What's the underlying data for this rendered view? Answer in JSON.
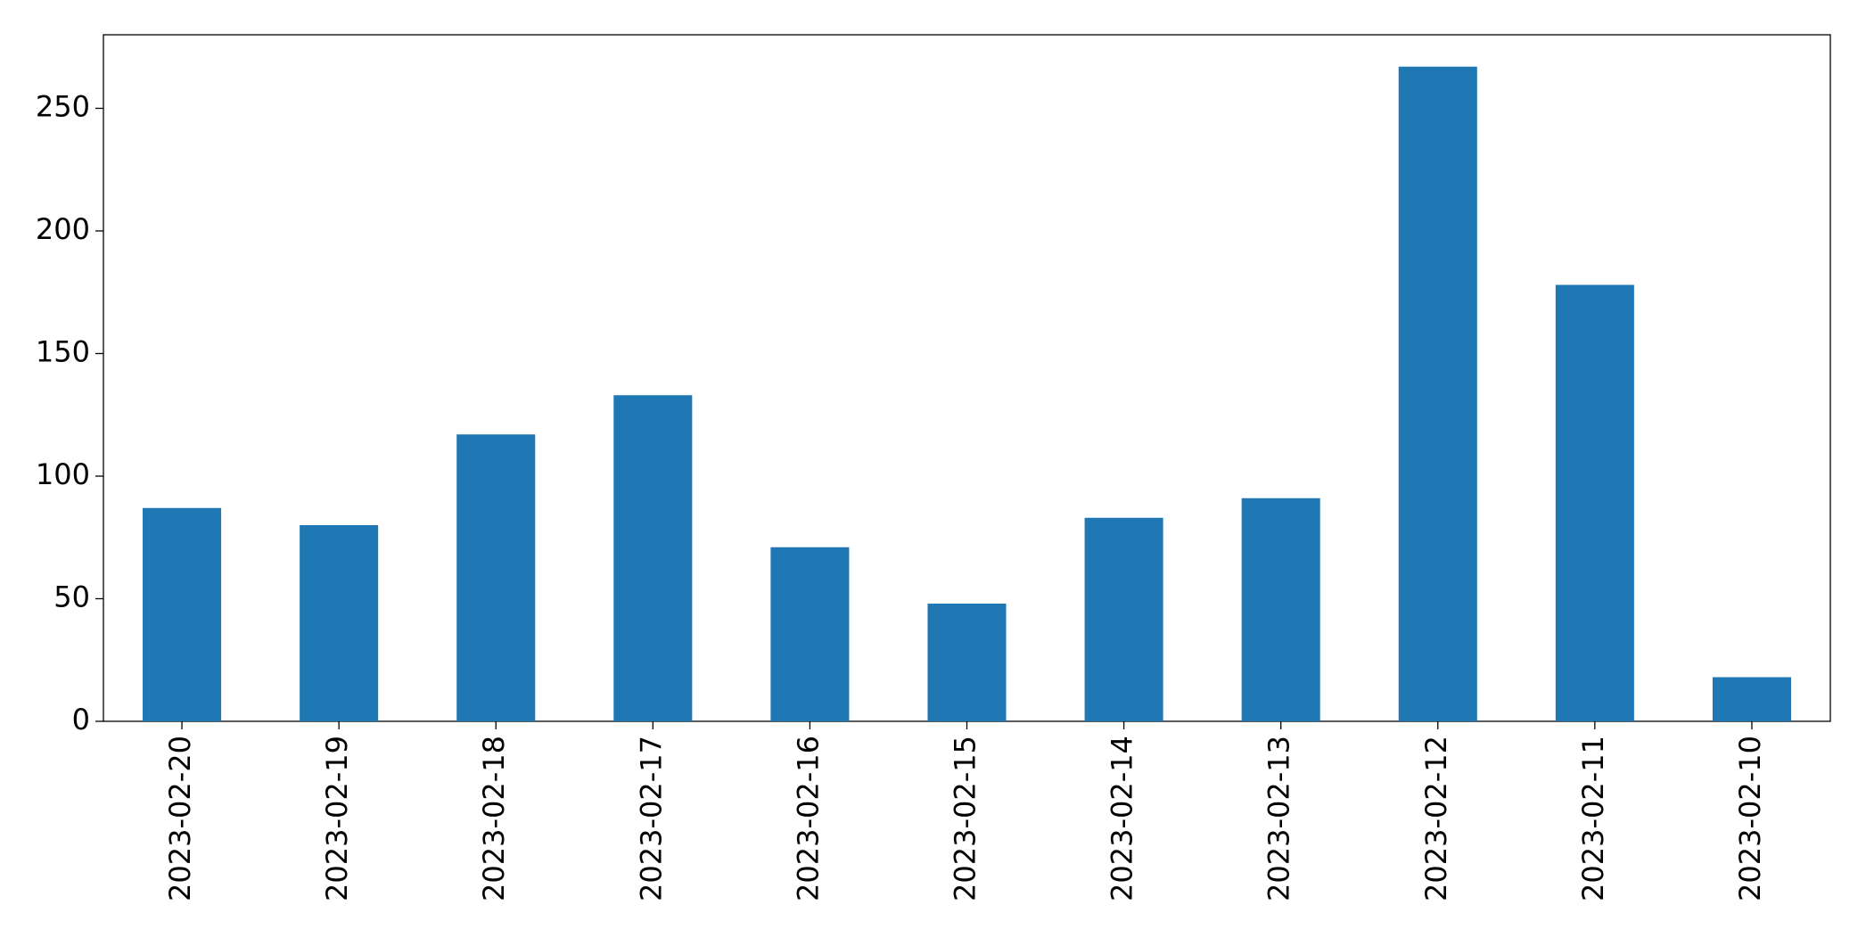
{
  "chart_data": {
    "type": "bar",
    "categories": [
      "2023-02-20",
      "2023-02-19",
      "2023-02-18",
      "2023-02-17",
      "2023-02-16",
      "2023-02-15",
      "2023-02-14",
      "2023-02-13",
      "2023-02-12",
      "2023-02-11",
      "2023-02-10"
    ],
    "values": [
      87,
      80,
      117,
      133,
      71,
      48,
      83,
      91,
      267,
      178,
      18
    ],
    "color": "#1f77b4",
    "ylim": [
      0,
      280
    ],
    "yticks": [
      0,
      50,
      100,
      150,
      200,
      250
    ],
    "grid": false
  }
}
